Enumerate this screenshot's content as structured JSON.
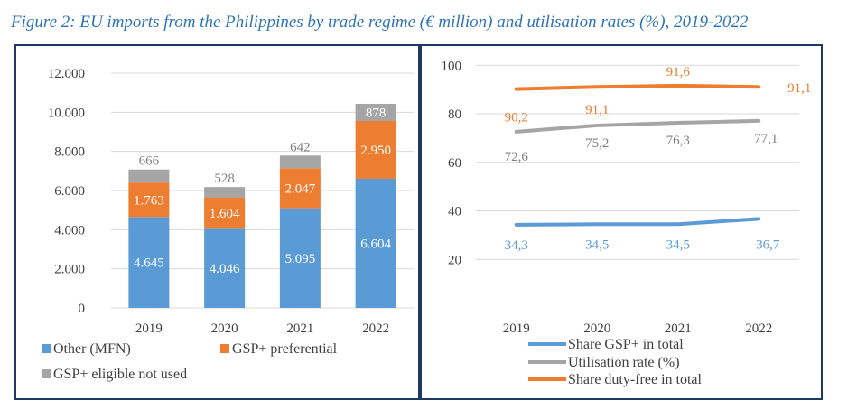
{
  "caption": "Figure 2: EU imports from the Philippines by trade regime (€ million) and utilisation rates (%), 2019-2022",
  "colors": {
    "blue": "#5b9bd5",
    "orange": "#ed7d31",
    "grey": "#a5a5a5",
    "frame": "#1f3864",
    "caption": "#2e74b5"
  },
  "chart_data": [
    {
      "type": "bar",
      "stacked": true,
      "title": "",
      "xlabel": "",
      "ylabel": "",
      "ylim": [
        0,
        12000
      ],
      "y_ticks": [
        "0",
        "2.000",
        "4.000",
        "6.000",
        "8.000",
        "10.000",
        "12.000"
      ],
      "categories": [
        "2019",
        "2020",
        "2021",
        "2022"
      ],
      "series": [
        {
          "name": "Other (MFN)",
          "color": "#5b9bd5",
          "values": [
            4645,
            4046,
            5095,
            6604
          ],
          "labels": [
            "4.645",
            "4.046",
            "5.095",
            "6.604"
          ]
        },
        {
          "name": "GSP+ preferential",
          "color": "#ed7d31",
          "values": [
            1763,
            1604,
            2047,
            2950
          ],
          "labels": [
            "1.763",
            "1.604",
            "2.047",
            "2.950"
          ]
        },
        {
          "name": "GSP+ eligible not used",
          "color": "#a5a5a5",
          "values": [
            666,
            528,
            642,
            878
          ],
          "labels": [
            "666",
            "528",
            "642",
            "878"
          ]
        }
      ],
      "grid": true,
      "legend": "bottom"
    },
    {
      "type": "line",
      "title": "",
      "xlabel": "",
      "ylabel": "",
      "ylim": [
        0,
        100
      ],
      "y_ticks": [
        "20",
        "40",
        "60",
        "80",
        "100"
      ],
      "x": [
        "2019",
        "2020",
        "2021",
        "2022"
      ],
      "series": [
        {
          "name": "Share GSP+ in total",
          "color": "#5b9bd5",
          "values": [
            34.3,
            34.5,
            34.5,
            36.7
          ],
          "labels": [
            "34,3",
            "34,5",
            "34,5",
            "36,7"
          ]
        },
        {
          "name": "Utilisation rate (%)",
          "color": "#a5a5a5",
          "values": [
            72.6,
            75.2,
            76.3,
            77.1
          ],
          "labels": [
            "72,6",
            "75,2",
            "76,3",
            "77,1"
          ]
        },
        {
          "name": "Share duty-free in total",
          "color": "#ed7d31",
          "values": [
            90.2,
            91.1,
            91.6,
            91.1
          ],
          "labels": [
            "90,2",
            "91,1",
            "91,6",
            "91,1"
          ]
        }
      ],
      "grid": true,
      "legend": "bottom"
    }
  ]
}
